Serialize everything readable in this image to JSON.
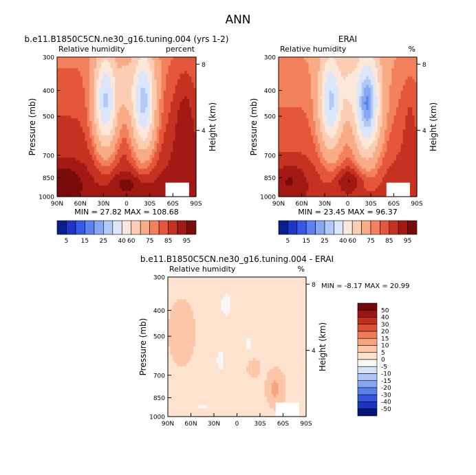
{
  "figure_title": "ANN",
  "chart_data": [
    {
      "type": "heatmap",
      "title": "b.e11.B1850C5CN.ne30_g16.tuning.004 (yrs 1-2)",
      "left_label": "Relative humidity",
      "right_label": "percent",
      "ylabel": "Pressure (mb)",
      "y2label": "Height (km)",
      "x_ticks": [
        "90N",
        "60N",
        "30N",
        "0",
        "30S",
        "60S",
        "90S"
      ],
      "y_ticks": [
        "300",
        "400",
        "500",
        "700",
        "850",
        "1000"
      ],
      "y2_ticks": [
        "8",
        "4"
      ],
      "stats": "MIN = 27.82 MAX = 108.68",
      "min": 27.82,
      "max": 108.68,
      "colorbar_labels": [
        "5",
        "15",
        "25",
        "40",
        "60",
        "75",
        "85",
        "95"
      ]
    },
    {
      "type": "heatmap",
      "title": "ERAI",
      "left_label": "Relative humidity",
      "right_label": "%",
      "ylabel": "Pressure (mb)",
      "y2label": "Height (km)",
      "x_ticks": [
        "90N",
        "60N",
        "30N",
        "0",
        "30S",
        "60S",
        "90S"
      ],
      "y_ticks": [
        "300",
        "400",
        "500",
        "700",
        "850",
        "1000"
      ],
      "y2_ticks": [
        "8",
        "4"
      ],
      "stats": "MIN = 23.45 MAX = 96.37",
      "min": 23.45,
      "max": 96.37,
      "colorbar_labels": [
        "5",
        "15",
        "25",
        "40",
        "60",
        "75",
        "85",
        "95"
      ]
    },
    {
      "type": "heatmap",
      "title": "b.e11.B1850C5CN.ne30_g16.tuning.004 - ERAI",
      "left_label": "Relative humidity",
      "right_label": "%",
      "ylabel": "Pressure (mb)",
      "y2label": "Height (km)",
      "x_ticks": [
        "90N",
        "60N",
        "30N",
        "0",
        "30S",
        "60S",
        "90S"
      ],
      "y_ticks": [
        "300",
        "400",
        "500",
        "700",
        "850",
        "1000"
      ],
      "y2_ticks": [
        "8",
        "4"
      ],
      "stats": "MIN = -8.17 MAX = 20.99",
      "min": -8.17,
      "max": 20.99,
      "colorbar_labels": [
        "50",
        "40",
        "30",
        "20",
        "15",
        "10",
        "5",
        "0",
        "-5",
        "-10",
        "-15",
        "-20",
        "-30",
        "-40",
        "-50"
      ]
    }
  ],
  "palettes": {
    "abs": [
      "#0a1e8c",
      "#1d36c8",
      "#3658e6",
      "#5a82f0",
      "#86a8f3",
      "#b1c9f6",
      "#dbe6fb",
      "#fce8db",
      "#fbcdb2",
      "#f9ab86",
      "#f3825c",
      "#e4573a",
      "#c63221",
      "#a31914",
      "#7a0b0b"
    ],
    "diff": [
      "#06157a",
      "#1a34c4",
      "#3356e2",
      "#5a80ee",
      "#85a6f2",
      "#adc6f7",
      "#d4e2fa",
      "#f7f7f7",
      "#fde3cf",
      "#fbc7a8",
      "#f8a47f",
      "#ef7b57",
      "#dc5136",
      "#c22d1c",
      "#9c1510",
      "#740808"
    ]
  }
}
